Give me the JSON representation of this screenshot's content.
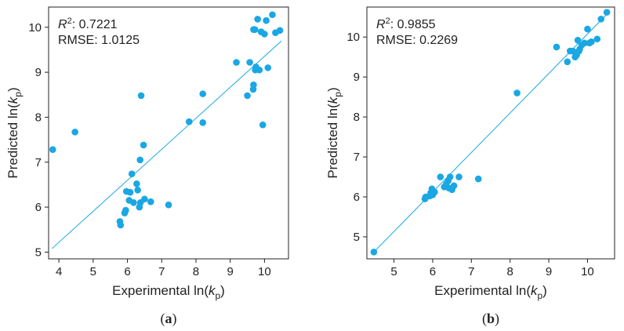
{
  "chart_data": [
    {
      "type": "scatter",
      "panel_label": "(a)",
      "xlabel_prefix": "Experimental ln(",
      "ylabel_prefix": "Predicted ln(",
      "label_var": "k",
      "label_sub": "p",
      "label_suffix": ")",
      "xlim": [
        3.7,
        10.7
      ],
      "ylim": [
        4.85,
        10.45
      ],
      "xticks": [
        "4",
        "5",
        "6",
        "7",
        "8",
        "9",
        "10"
      ],
      "yticks": [
        "5",
        "6",
        "7",
        "8",
        "9",
        "10"
      ],
      "grid": false,
      "r2_label": "R",
      "r2_sup": "2",
      "r2_value": ": 0.7221",
      "rmse_text": "RMSE: 1.0125",
      "fit_line": {
        "x": [
          3.8,
          10.5
        ],
        "y": [
          5.08,
          9.7
        ]
      },
      "point_color": "#1aa7e3",
      "line_color": "#1aa7e3",
      "series": [
        {
          "x": [
            3.82,
            4.47,
            5.78,
            5.8,
            5.92,
            5.95,
            5.97,
            6.05,
            6.08,
            6.13,
            6.18,
            6.27,
            6.3,
            6.35,
            6.37,
            6.38,
            6.47,
            6.5,
            6.68,
            7.2,
            6.4,
            7.8,
            8.2,
            8.2,
            9.18,
            9.5,
            9.57,
            9.67,
            9.68,
            9.72,
            9.75,
            9.8,
            9.85,
            9.9,
            9.95,
            10.0,
            10.05,
            10.1,
            10.23,
            10.32,
            10.45,
            9.73,
            9.68
          ],
          "y": [
            7.28,
            7.67,
            5.68,
            5.6,
            5.87,
            5.93,
            6.35,
            6.15,
            6.33,
            6.74,
            6.1,
            6.52,
            6.38,
            6.0,
            7.05,
            6.1,
            7.38,
            6.18,
            6.12,
            6.05,
            8.48,
            7.9,
            8.52,
            7.88,
            9.22,
            8.48,
            9.22,
            8.62,
            8.72,
            9.95,
            9.12,
            10.18,
            9.05,
            9.9,
            7.83,
            9.85,
            10.15,
            9.1,
            10.28,
            9.88,
            9.93,
            9.05,
            9.95
          ]
        }
      ]
    },
    {
      "type": "scatter",
      "panel_label": "(b)",
      "xlabel_prefix": "Experimental ln(",
      "ylabel_prefix": "Predicted ln(",
      "label_var": "k",
      "label_sub": "p",
      "label_suffix": ")",
      "xlim": [
        4.3,
        10.7
      ],
      "ylim": [
        4.45,
        10.75
      ],
      "xticks": [
        "5",
        "6",
        "7",
        "8",
        "9",
        "10"
      ],
      "yticks": [
        "5",
        "6",
        "7",
        "8",
        "9",
        "10"
      ],
      "grid": false,
      "r2_label": "R",
      "r2_sup": "2",
      "r2_value": ": 0.9855",
      "rmse_text": "RMSE: 0.2269",
      "fit_line": {
        "x": [
          4.48,
          10.55
        ],
        "y": [
          4.62,
          10.62
        ]
      },
      "point_color": "#1aa7e3",
      "line_color": "#1aa7e3",
      "series": [
        {
          "x": [
            4.48,
            5.8,
            5.82,
            5.92,
            5.95,
            5.98,
            6.0,
            6.05,
            6.2,
            6.3,
            6.35,
            6.4,
            6.42,
            6.45,
            6.5,
            6.55,
            6.68,
            7.18,
            8.18,
            9.2,
            9.48,
            9.55,
            9.62,
            9.68,
            9.72,
            9.75,
            9.8,
            9.85,
            9.92,
            10.0,
            10.05,
            10.1,
            10.25,
            10.35,
            10.5,
            9.7,
            9.78
          ],
          "y": [
            4.62,
            5.95,
            6.0,
            6.02,
            6.1,
            6.2,
            6.05,
            6.12,
            6.5,
            6.25,
            6.32,
            6.4,
            6.22,
            6.5,
            6.18,
            6.28,
            6.5,
            6.45,
            8.6,
            9.75,
            9.38,
            9.65,
            9.65,
            9.5,
            9.55,
            9.92,
            9.7,
            9.8,
            9.85,
            10.2,
            9.85,
            9.88,
            9.95,
            10.45,
            10.62,
            9.6,
            9.65
          ]
        }
      ]
    }
  ]
}
